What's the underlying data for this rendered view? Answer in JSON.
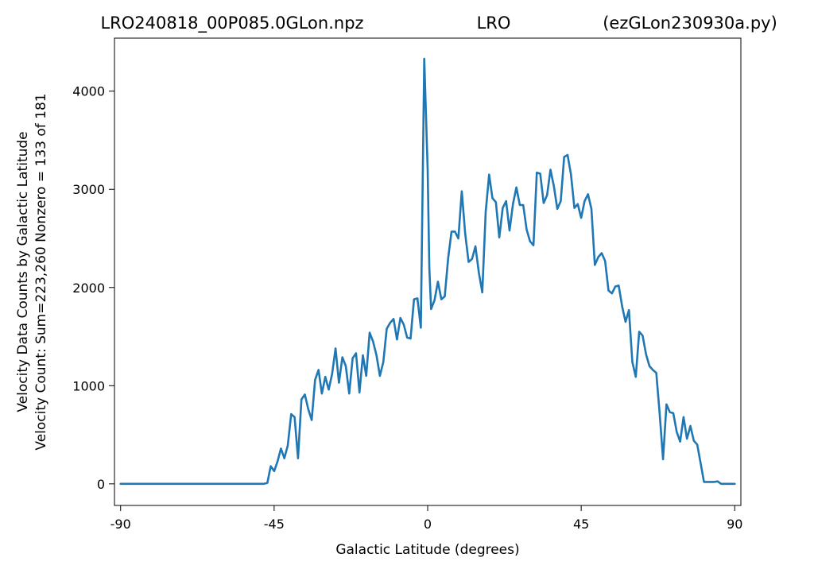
{
  "titles": {
    "left": "LRO240818_00P085.0GLon.npz",
    "center": "LRO",
    "right": "(ezGLon230930a.py)"
  },
  "chart_data": {
    "type": "line",
    "title": "",
    "xlabel": "Galactic Latitude (degrees)",
    "ylabel_line1": "Velocity Data Counts by Galactic Latitude",
    "ylabel_line2": "Velocity Count: Sum=223,260 Nonzero = 133 of 181",
    "xlim": [
      -91.8,
      91.8
    ],
    "ylim": [
      -220,
      4540
    ],
    "x_ticks": [
      -90,
      -45,
      0,
      45,
      90
    ],
    "x_tick_labels": [
      "-90",
      "-45",
      "0",
      "45",
      "90"
    ],
    "y_ticks": [
      0,
      1000,
      2000,
      3000,
      4000
    ],
    "y_tick_labels": [
      "0",
      "1000",
      "2000",
      "3000",
      "4000"
    ],
    "grid": false,
    "line_color": "#1f77b4",
    "series": [
      {
        "points": [
          [
            -90,
            0
          ],
          [
            -88,
            0
          ],
          [
            -86,
            0
          ],
          [
            -84,
            0
          ],
          [
            -82,
            0
          ],
          [
            -80,
            0
          ],
          [
            -78,
            0
          ],
          [
            -76,
            0
          ],
          [
            -74,
            0
          ],
          [
            -72,
            0
          ],
          [
            -70,
            0
          ],
          [
            -68,
            0
          ],
          [
            -66,
            0
          ],
          [
            -64,
            0
          ],
          [
            -62,
            0
          ],
          [
            -60,
            0
          ],
          [
            -58,
            0
          ],
          [
            -56,
            0
          ],
          [
            -54,
            0
          ],
          [
            -52,
            0
          ],
          [
            -50,
            0
          ],
          [
            -48,
            0
          ],
          [
            -47,
            10
          ],
          [
            -46,
            180
          ],
          [
            -45,
            130
          ],
          [
            -44,
            230
          ],
          [
            -43,
            360
          ],
          [
            -42,
            260
          ],
          [
            -41,
            390
          ],
          [
            -40,
            710
          ],
          [
            -39,
            680
          ],
          [
            -38,
            260
          ],
          [
            -37,
            860
          ],
          [
            -36,
            910
          ],
          [
            -35,
            760
          ],
          [
            -34,
            650
          ],
          [
            -33,
            1060
          ],
          [
            -32,
            1160
          ],
          [
            -31,
            920
          ],
          [
            -30,
            1090
          ],
          [
            -29,
            960
          ],
          [
            -28,
            1120
          ],
          [
            -27,
            1380
          ],
          [
            -26,
            1030
          ],
          [
            -25,
            1290
          ],
          [
            -24,
            1200
          ],
          [
            -23,
            920
          ],
          [
            -22,
            1280
          ],
          [
            -21,
            1330
          ],
          [
            -20,
            930
          ],
          [
            -19,
            1310
          ],
          [
            -18,
            1100
          ],
          [
            -17,
            1540
          ],
          [
            -16,
            1450
          ],
          [
            -15,
            1310
          ],
          [
            -14,
            1100
          ],
          [
            -13,
            1240
          ],
          [
            -12,
            1580
          ],
          [
            -11,
            1640
          ],
          [
            -10,
            1680
          ],
          [
            -9,
            1470
          ],
          [
            -8,
            1690
          ],
          [
            -7,
            1620
          ],
          [
            -6,
            1490
          ],
          [
            -5,
            1480
          ],
          [
            -4,
            1880
          ],
          [
            -3,
            1890
          ],
          [
            -2,
            1590
          ],
          [
            -1,
            4330
          ],
          [
            0,
            3200
          ],
          [
            0.5,
            2200
          ],
          [
            1,
            1780
          ],
          [
            2,
            1870
          ],
          [
            3,
            2060
          ],
          [
            4,
            1880
          ],
          [
            5,
            1910
          ],
          [
            6,
            2300
          ],
          [
            7,
            2570
          ],
          [
            8,
            2570
          ],
          [
            9,
            2500
          ],
          [
            10,
            2980
          ],
          [
            11,
            2550
          ],
          [
            12,
            2260
          ],
          [
            13,
            2290
          ],
          [
            14,
            2420
          ],
          [
            15,
            2150
          ],
          [
            16,
            1950
          ],
          [
            17,
            2770
          ],
          [
            18,
            3150
          ],
          [
            19,
            2910
          ],
          [
            20,
            2870
          ],
          [
            21,
            2510
          ],
          [
            22,
            2810
          ],
          [
            23,
            2880
          ],
          [
            24,
            2580
          ],
          [
            25,
            2850
          ],
          [
            26,
            3020
          ],
          [
            27,
            2840
          ],
          [
            28,
            2840
          ],
          [
            29,
            2590
          ],
          [
            30,
            2470
          ],
          [
            31,
            2430
          ],
          [
            32,
            3170
          ],
          [
            33,
            3160
          ],
          [
            34,
            2860
          ],
          [
            35,
            2940
          ],
          [
            36,
            3200
          ],
          [
            37,
            3030
          ],
          [
            38,
            2800
          ],
          [
            39,
            2880
          ],
          [
            40,
            3330
          ],
          [
            41,
            3350
          ],
          [
            42,
            3150
          ],
          [
            43,
            2810
          ],
          [
            44,
            2850
          ],
          [
            45,
            2710
          ],
          [
            46,
            2880
          ],
          [
            47,
            2950
          ],
          [
            48,
            2800
          ],
          [
            49,
            2230
          ],
          [
            50,
            2310
          ],
          [
            51,
            2350
          ],
          [
            52,
            2270
          ],
          [
            53,
            1970
          ],
          [
            54,
            1940
          ],
          [
            55,
            2010
          ],
          [
            56,
            2020
          ],
          [
            57,
            1810
          ],
          [
            58,
            1650
          ],
          [
            59,
            1770
          ],
          [
            60,
            1240
          ],
          [
            61,
            1090
          ],
          [
            62,
            1550
          ],
          [
            63,
            1510
          ],
          [
            64,
            1320
          ],
          [
            65,
            1200
          ],
          [
            66,
            1160
          ],
          [
            67,
            1130
          ],
          [
            68,
            710
          ],
          [
            69,
            250
          ],
          [
            70,
            810
          ],
          [
            71,
            730
          ],
          [
            72,
            720
          ],
          [
            73,
            530
          ],
          [
            74,
            430
          ],
          [
            75,
            680
          ],
          [
            76,
            460
          ],
          [
            77,
            590
          ],
          [
            78,
            440
          ],
          [
            79,
            400
          ],
          [
            80,
            210
          ],
          [
            81,
            20
          ],
          [
            82,
            20
          ],
          [
            83,
            20
          ],
          [
            84,
            20
          ],
          [
            85,
            25
          ],
          [
            86,
            0
          ],
          [
            87,
            0
          ],
          [
            88,
            0
          ],
          [
            89,
            0
          ],
          [
            90,
            0
          ]
        ]
      }
    ]
  }
}
